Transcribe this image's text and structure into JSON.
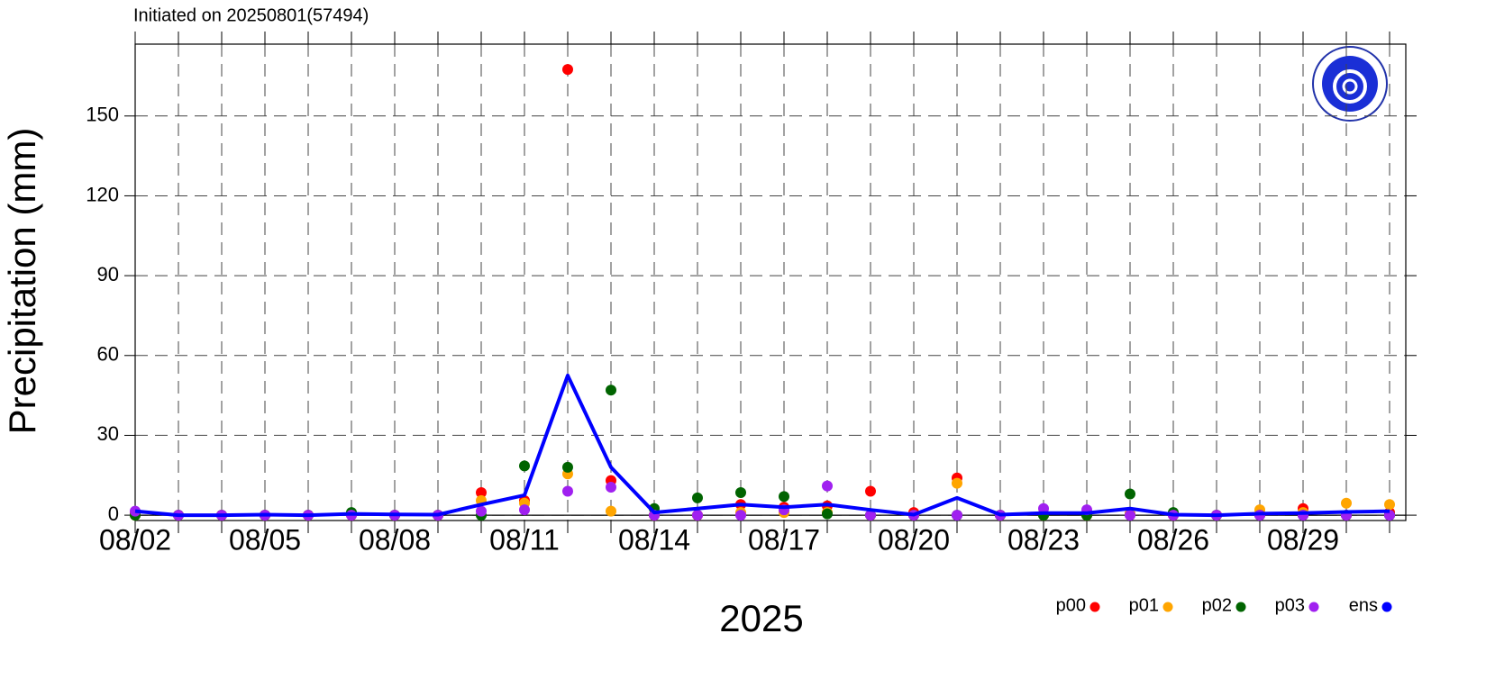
{
  "chart_data": {
    "type": "line",
    "title": "Initiated on 20250801(57494)",
    "y_label": "Precipitation (mm)",
    "x_label": "2025",
    "categories": [
      "08/02",
      null,
      null,
      "08/05",
      null,
      null,
      "08/08",
      null,
      null,
      "08/11",
      null,
      null,
      "08/14",
      null,
      null,
      "08/17",
      null,
      null,
      "08/20",
      null,
      null,
      "08/23",
      null,
      null,
      "08/26",
      null,
      null,
      "08/29",
      null,
      null
    ],
    "ylim": [
      -2,
      177
    ],
    "yticks": [
      0,
      30,
      60,
      90,
      120,
      150
    ],
    "grid": true,
    "series": [
      {
        "name": "p00",
        "color": "#ff0000",
        "style": "dots",
        "values": [
          1,
          0,
          0,
          0,
          0,
          0.5,
          0,
          0,
          8.5,
          5.5,
          167.5,
          13,
          0,
          0,
          4,
          3,
          3.5,
          9,
          1,
          14,
          0,
          0.5,
          0,
          0.5,
          0,
          0,
          0.5,
          2.5,
          0,
          1
        ]
      },
      {
        "name": "p01",
        "color": "#ffa500",
        "style": "dots",
        "values": [
          0,
          0,
          0,
          0,
          0,
          0,
          0,
          0,
          5.5,
          4.5,
          15.5,
          1.5,
          0,
          0,
          1,
          1,
          1,
          0,
          0,
          12,
          0,
          0,
          0,
          0.5,
          0,
          0,
          2,
          1,
          4.5,
          4
        ]
      },
      {
        "name": "p02",
        "color": "#006400",
        "style": "dots",
        "values": [
          0,
          0,
          0,
          0,
          0,
          1,
          0,
          0,
          0,
          18.5,
          18,
          47,
          2.5,
          6.5,
          8.5,
          7,
          0.5,
          0,
          0,
          0,
          0,
          0,
          0,
          8,
          1,
          0,
          0,
          0,
          0,
          0
        ]
      },
      {
        "name": "p03",
        "color": "#a020f0",
        "style": "dots",
        "values": [
          1.5,
          0,
          0,
          0,
          0,
          0,
          0,
          0,
          1.5,
          2,
          9,
          10.5,
          0,
          0,
          0,
          2,
          11,
          0,
          0,
          0,
          0,
          2.5,
          2,
          0,
          0,
          0,
          0,
          0,
          0,
          0
        ]
      },
      {
        "name": "ens",
        "color": "#0000ff",
        "style": "line",
        "values": [
          1.5,
          0,
          0,
          0.2,
          0,
          0.5,
          0.3,
          0.2,
          4,
          7.5,
          52.5,
          18,
          1,
          2.5,
          4,
          3,
          4,
          2,
          0.2,
          6.5,
          0.2,
          0.8,
          0.8,
          2.5,
          0.2,
          0,
          0.6,
          0.8,
          1.2,
          1.5
        ]
      }
    ]
  }
}
